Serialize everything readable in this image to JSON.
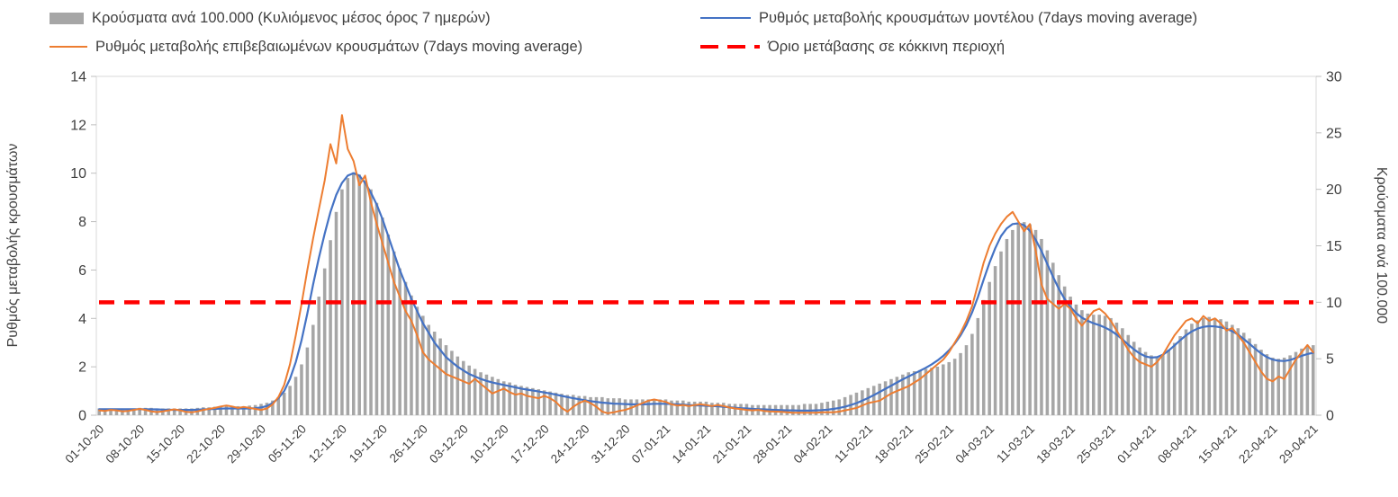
{
  "axes": {
    "left_label": "Ρυθμός μεταβολής κρουσμάτων",
    "right_label": "Κρούσματα ανά 100.000",
    "left_ticks": [
      0,
      2,
      4,
      6,
      8,
      10,
      12,
      14
    ],
    "right_ticks": [
      0,
      5,
      10,
      15,
      20,
      25,
      30
    ]
  },
  "chart_data": {
    "type": "line",
    "title": "",
    "legend_position": "top",
    "grid": false,
    "n_points": 211,
    "left_ylim": [
      0,
      14
    ],
    "right_ylim": [
      0,
      30
    ],
    "x_tick_labels": [
      "01-10-20",
      "08-10-20",
      "15-10-20",
      "22-10-20",
      "29-10-20",
      "05-11-20",
      "12-11-20",
      "19-11-20",
      "26-11-20",
      "03-12-20",
      "10-12-20",
      "17-12-20",
      "24-12-20",
      "31-12-20",
      "07-01-21",
      "14-01-21",
      "21-01-21",
      "28-01-21",
      "04-02-21",
      "11-02-21",
      "18-02-21",
      "25-02-21",
      "04-03-21",
      "11-03-21",
      "18-03-21",
      "25-03-21",
      "01-04-21",
      "08-04-21",
      "15-04-21",
      "22-04-21",
      "29-04-21"
    ],
    "x_tick_indices": [
      0,
      7,
      14,
      21,
      28,
      35,
      42,
      49,
      56,
      63,
      70,
      77,
      84,
      91,
      98,
      105,
      112,
      119,
      126,
      133,
      140,
      147,
      154,
      161,
      168,
      175,
      182,
      189,
      196,
      203,
      210
    ],
    "series": [
      {
        "name": "Κρούσματα ανά 100.000 (Κυλιόμενος μέσος όρος 7 ημερών)",
        "type": "bar",
        "axis": "right",
        "color": "#a6a6a6",
        "values": [
          0.6,
          0.6,
          0.6,
          0.6,
          0.6,
          0.6,
          0.6,
          0.65,
          0.65,
          0.65,
          0.6,
          0.6,
          0.6,
          0.6,
          0.6,
          0.6,
          0.6,
          0.65,
          0.7,
          0.7,
          0.75,
          0.8,
          0.8,
          0.8,
          0.8,
          0.8,
          0.85,
          0.9,
          1.0,
          1.1,
          1.3,
          1.6,
          2.0,
          2.6,
          3.4,
          4.5,
          6.0,
          8.0,
          10.5,
          13.0,
          15.5,
          18.0,
          20.0,
          21.0,
          21.5,
          21.3,
          20.8,
          20.0,
          18.8,
          17.5,
          16.0,
          14.5,
          13.0,
          11.8,
          10.6,
          9.6,
          8.8,
          8.0,
          7.4,
          6.8,
          6.2,
          5.7,
          5.2,
          4.8,
          4.4,
          4.1,
          3.8,
          3.6,
          3.4,
          3.2,
          3.0,
          2.9,
          2.7,
          2.6,
          2.5,
          2.4,
          2.3,
          2.2,
          2.1,
          2.0,
          1.9,
          1.8,
          1.8,
          1.7,
          1.7,
          1.6,
          1.6,
          1.6,
          1.5,
          1.5,
          1.5,
          1.4,
          1.4,
          1.4,
          1.4,
          1.4,
          1.4,
          1.4,
          1.4,
          1.3,
          1.3,
          1.3,
          1.2,
          1.2,
          1.2,
          1.2,
          1.1,
          1.1,
          1.1,
          1.0,
          1.0,
          1.0,
          1.0,
          0.9,
          0.9,
          0.9,
          0.9,
          0.9,
          0.9,
          0.9,
          0.9,
          0.9,
          1.0,
          1.0,
          1.0,
          1.1,
          1.2,
          1.3,
          1.4,
          1.6,
          1.8,
          2.0,
          2.2,
          2.4,
          2.6,
          2.8,
          3.0,
          3.2,
          3.4,
          3.6,
          3.8,
          3.9,
          4.0,
          4.1,
          4.2,
          4.3,
          4.5,
          4.7,
          5.0,
          5.5,
          6.2,
          7.2,
          8.6,
          10.2,
          11.8,
          13.2,
          14.5,
          15.6,
          16.4,
          16.9,
          17.1,
          16.9,
          16.4,
          15.6,
          14.6,
          13.5,
          12.4,
          11.4,
          10.5,
          9.8,
          9.3,
          9.0,
          8.9,
          8.9,
          8.8,
          8.6,
          8.2,
          7.7,
          7.1,
          6.5,
          6.0,
          5.6,
          5.3,
          5.2,
          5.4,
          5.8,
          6.4,
          7.0,
          7.6,
          8.1,
          8.4,
          8.6,
          8.7,
          8.6,
          8.5,
          8.3,
          8.0,
          7.7,
          7.3,
          6.8,
          6.3,
          5.8,
          5.4,
          5.1,
          5.0,
          5.1,
          5.3,
          5.6,
          5.9,
          6.1,
          6.2
        ]
      },
      {
        "name": "Ρυθμός μεταβολής κρουσμάτων μοντέλου (7days moving average)",
        "type": "line",
        "axis": "left",
        "color": "#4472c4",
        "values": [
          0.25,
          0.25,
          0.25,
          0.25,
          0.25,
          0.25,
          0.25,
          0.25,
          0.25,
          0.24,
          0.24,
          0.23,
          0.23,
          0.22,
          0.22,
          0.22,
          0.22,
          0.23,
          0.24,
          0.25,
          0.26,
          0.27,
          0.28,
          0.28,
          0.28,
          0.28,
          0.28,
          0.29,
          0.32,
          0.38,
          0.5,
          0.7,
          1.0,
          1.5,
          2.2,
          3.1,
          4.2,
          5.4,
          6.5,
          7.5,
          8.4,
          9.1,
          9.6,
          9.9,
          10.0,
          9.9,
          9.6,
          9.2,
          8.7,
          8.1,
          7.4,
          6.7,
          6.0,
          5.4,
          4.8,
          4.3,
          3.8,
          3.4,
          3.0,
          2.7,
          2.4,
          2.2,
          2.0,
          1.85,
          1.7,
          1.6,
          1.5,
          1.42,
          1.35,
          1.3,
          1.25,
          1.2,
          1.15,
          1.1,
          1.06,
          1.02,
          0.98,
          0.94,
          0.9,
          0.85,
          0.8,
          0.75,
          0.7,
          0.66,
          0.62,
          0.58,
          0.55,
          0.52,
          0.5,
          0.48,
          0.47,
          0.46,
          0.45,
          0.45,
          0.45,
          0.46,
          0.47,
          0.47,
          0.47,
          0.46,
          0.45,
          0.44,
          0.42,
          0.41,
          0.4,
          0.39,
          0.38,
          0.37,
          0.35,
          0.33,
          0.31,
          0.29,
          0.28,
          0.26,
          0.25,
          0.24,
          0.23,
          0.22,
          0.21,
          0.2,
          0.2,
          0.19,
          0.19,
          0.19,
          0.2,
          0.21,
          0.23,
          0.26,
          0.3,
          0.35,
          0.42,
          0.5,
          0.6,
          0.71,
          0.83,
          0.96,
          1.09,
          1.22,
          1.35,
          1.48,
          1.6,
          1.72,
          1.84,
          1.96,
          2.1,
          2.26,
          2.45,
          2.68,
          2.96,
          3.3,
          3.72,
          4.25,
          4.88,
          5.6,
          6.3,
          6.9,
          7.4,
          7.72,
          7.9,
          7.93,
          7.85,
          7.62,
          7.25,
          6.78,
          6.25,
          5.72,
          5.22,
          4.8,
          4.47,
          4.22,
          4.03,
          3.9,
          3.8,
          3.72,
          3.62,
          3.5,
          3.33,
          3.13,
          2.92,
          2.72,
          2.55,
          2.43,
          2.38,
          2.4,
          2.5,
          2.67,
          2.88,
          3.1,
          3.3,
          3.46,
          3.58,
          3.65,
          3.68,
          3.67,
          3.63,
          3.57,
          3.47,
          3.33,
          3.15,
          2.95,
          2.74,
          2.55,
          2.4,
          2.3,
          2.25,
          2.24,
          2.28,
          2.36,
          2.45,
          2.53,
          2.58
        ]
      },
      {
        "name": "Ρυθμός μεταβολής επιβεβαιωμένων κρουσμάτων (7days moving average)",
        "type": "line",
        "axis": "left",
        "color": "#ed7d31",
        "values": [
          0.2,
          0.18,
          0.22,
          0.2,
          0.16,
          0.18,
          0.22,
          0.26,
          0.22,
          0.16,
          0.13,
          0.16,
          0.2,
          0.24,
          0.2,
          0.14,
          0.12,
          0.16,
          0.22,
          0.26,
          0.3,
          0.36,
          0.4,
          0.36,
          0.3,
          0.34,
          0.3,
          0.26,
          0.22,
          0.28,
          0.45,
          0.75,
          1.25,
          2.1,
          3.3,
          4.6,
          6.0,
          7.3,
          8.5,
          9.7,
          11.2,
          10.4,
          12.4,
          11.0,
          10.5,
          9.5,
          9.9,
          8.8,
          7.9,
          7.1,
          6.3,
          5.5,
          4.9,
          4.3,
          3.9,
          3.3,
          2.6,
          2.3,
          2.1,
          1.9,
          1.7,
          1.6,
          1.5,
          1.4,
          1.3,
          1.5,
          1.3,
          1.1,
          0.9,
          1.0,
          1.1,
          0.95,
          0.85,
          0.9,
          0.8,
          0.75,
          0.7,
          0.8,
          0.7,
          0.55,
          0.3,
          0.15,
          0.35,
          0.5,
          0.6,
          0.5,
          0.35,
          0.15,
          0.08,
          0.12,
          0.18,
          0.22,
          0.3,
          0.4,
          0.5,
          0.6,
          0.65,
          0.6,
          0.55,
          0.45,
          0.4,
          0.42,
          0.38,
          0.42,
          0.45,
          0.42,
          0.38,
          0.42,
          0.38,
          0.32,
          0.28,
          0.25,
          0.22,
          0.2,
          0.22,
          0.18,
          0.16,
          0.15,
          0.14,
          0.12,
          0.1,
          0.1,
          0.1,
          0.1,
          0.1,
          0.12,
          0.12,
          0.12,
          0.15,
          0.2,
          0.25,
          0.3,
          0.4,
          0.5,
          0.55,
          0.6,
          0.75,
          0.9,
          1.0,
          1.1,
          1.2,
          1.35,
          1.5,
          1.7,
          1.9,
          2.1,
          2.3,
          2.6,
          3.0,
          3.4,
          3.9,
          4.5,
          5.4,
          6.3,
          7.0,
          7.5,
          7.9,
          8.2,
          8.4,
          8.0,
          7.6,
          7.9,
          6.8,
          5.4,
          4.8,
          4.6,
          4.4,
          4.6,
          4.4,
          4.0,
          3.7,
          4.0,
          4.3,
          4.4,
          4.2,
          3.9,
          3.5,
          3.1,
          2.7,
          2.4,
          2.2,
          2.1,
          2.0,
          2.2,
          2.5,
          2.9,
          3.3,
          3.6,
          3.9,
          4.0,
          3.8,
          4.1,
          3.9,
          4.0,
          3.8,
          3.5,
          3.6,
          3.3,
          3.0,
          2.6,
          2.2,
          1.8,
          1.5,
          1.4,
          1.6,
          1.5,
          1.9,
          2.3,
          2.6,
          2.9,
          2.6
        ]
      },
      {
        "name": "Όριο μετάβασης σε κόκκινη περιοχή",
        "type": "threshold",
        "axis": "right",
        "color": "#ff0000",
        "value": 10
      }
    ]
  }
}
